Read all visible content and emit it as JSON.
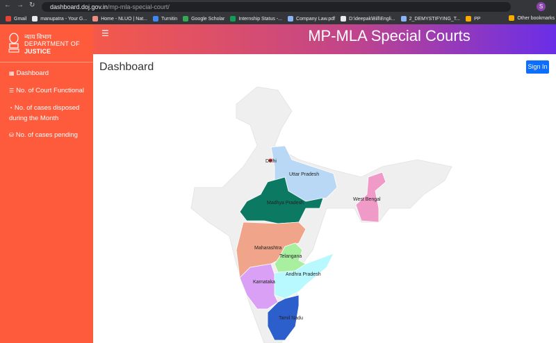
{
  "browser": {
    "url_host": "dashboard.doj.gov.in",
    "url_path": "/mp-mla-special-court/",
    "profile": "S",
    "bookmarks": [
      "Gmail",
      "manupatra - Your G...",
      "Home - NLUO | Nat...",
      "Turnitin",
      "Google Scholar",
      "Internship Status -...",
      "Company Law.pdf",
      "D:\\deepak\\Bill\\Engli...",
      "2_DEMYSTIFYING_T...",
      "PP"
    ],
    "other_bookmarks": "Other bookmarks"
  },
  "sidebar": {
    "logo": [
      "न्याय विभाग",
      "DEPARTMENT OF",
      "JUSTICE"
    ],
    "menu": [
      "Dashboard",
      "No. of Court Functional",
      "No. of cases disposed during the Month",
      "No. of cases pending"
    ]
  },
  "header": {
    "title": "MP-MLA Special Courts"
  },
  "main": {
    "title": "Dashboard",
    "sign_in": "Sign In"
  },
  "map": {
    "labels": [
      "Delhi",
      "Uttar Pradesh",
      "Madhya Pradesh",
      "West Bengal",
      "Maharashtra",
      "Telangana",
      "Andhra Pradesh",
      "Karnataka",
      "Tamil Nadu"
    ]
  }
}
